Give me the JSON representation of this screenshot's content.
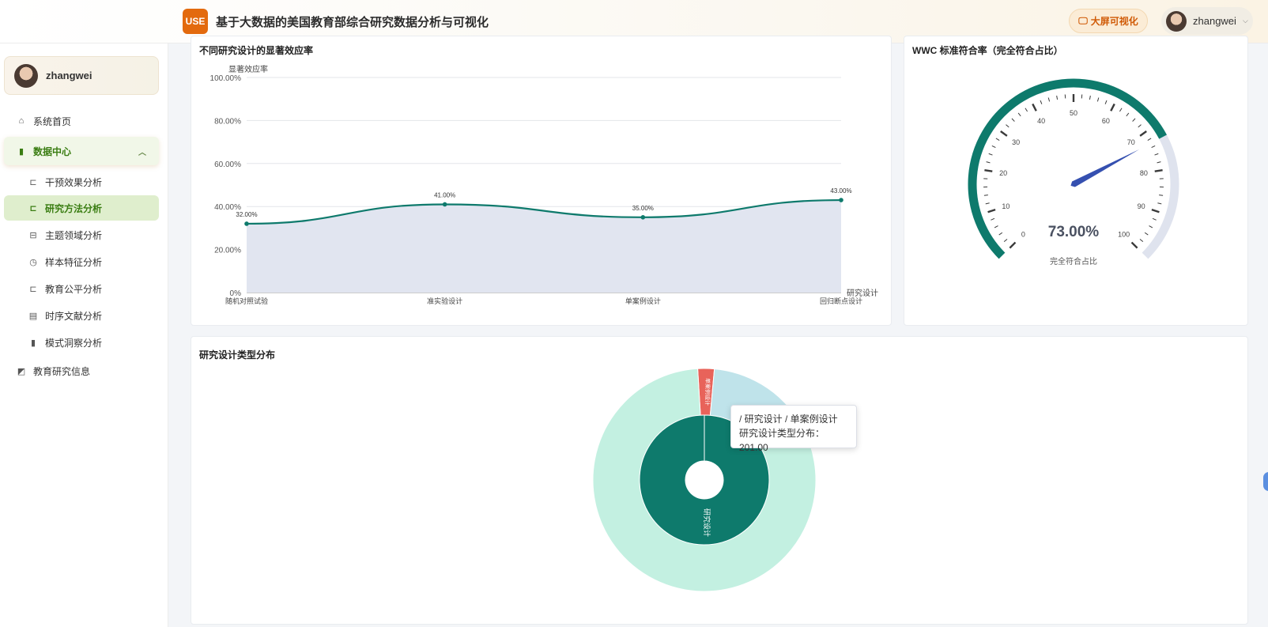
{
  "header": {
    "logo": "USE",
    "title": "基于大数据的美国教育部综合研究数据分析与可视化",
    "bigscreen_label": "大屏可视化",
    "username": "zhangwei"
  },
  "sidebar": {
    "username": "zhangwei",
    "items": [
      {
        "label": "系统首页",
        "icon": "home-icon"
      },
      {
        "label": "数据中心",
        "icon": "bar-chart-icon"
      },
      {
        "label": "干预效果分析",
        "icon": "cart-icon"
      },
      {
        "label": "研究方法分析",
        "icon": "cart-icon"
      },
      {
        "label": "主题领域分析",
        "icon": "box-icon"
      },
      {
        "label": "样本特征分析",
        "icon": "pie-icon"
      },
      {
        "label": "教育公平分析",
        "icon": "cart-icon"
      },
      {
        "label": "时序文献分析",
        "icon": "calendar-icon"
      },
      {
        "label": "模式洞察分析",
        "icon": "bar-chart-icon"
      },
      {
        "label": "教育研究信息",
        "icon": "trend-icon"
      }
    ]
  },
  "line_card": {
    "title": "不同研究设计的显著效应率"
  },
  "gauge_card": {
    "title": "WWC 标准符合率（完全符合占比）"
  },
  "sunburst_card": {
    "title": "研究设计类型分布"
  },
  "tooltip": {
    "line1": "/ 研究设计 / 单案例设计",
    "line2": "研究设计类型分布：201.00"
  },
  "colors": {
    "accent": "#0e7a6c",
    "line_area": "#e1e5f0",
    "menu_active": "#dfeecd",
    "logo": "#e36a0e",
    "needle": "#3550b0"
  },
  "chart_data": [
    {
      "type": "area",
      "title": "不同研究设计的显著效应率",
      "ylabel": "显著效应率",
      "xlabel": "研究设计",
      "categories": [
        "随机对照试验",
        "准实验设计",
        "单案例设计",
        "回归断点设计"
      ],
      "values": [
        32,
        41,
        35,
        43
      ],
      "value_labels": [
        "32.00%",
        "41.00%",
        "35.00%",
        "43.00%"
      ],
      "ylim": [
        0,
        100
      ],
      "y_ticks": [
        "0%",
        "20.00%",
        "40.00%",
        "60.00%",
        "80.00%",
        "100.00%"
      ],
      "grid": true
    },
    {
      "type": "gauge",
      "title": "WWC 标准符合率（完全符合占比）",
      "value": 73,
      "value_label": "73.00%",
      "label": "完全符合占比",
      "range": [
        0,
        100
      ],
      "tick_labels": [
        "0",
        "10",
        "20",
        "30",
        "40",
        "50",
        "60",
        "70",
        "80",
        "90",
        "100"
      ]
    },
    {
      "type": "sunburst",
      "title": "研究设计类型分布",
      "inner": {
        "name": "研究设计"
      },
      "outer": [
        {
          "name": "单案例设计",
          "value": 201.0
        },
        {
          "name": "",
          "value": 1200
        },
        {
          "name": "",
          "value": 7000
        }
      ]
    }
  ]
}
